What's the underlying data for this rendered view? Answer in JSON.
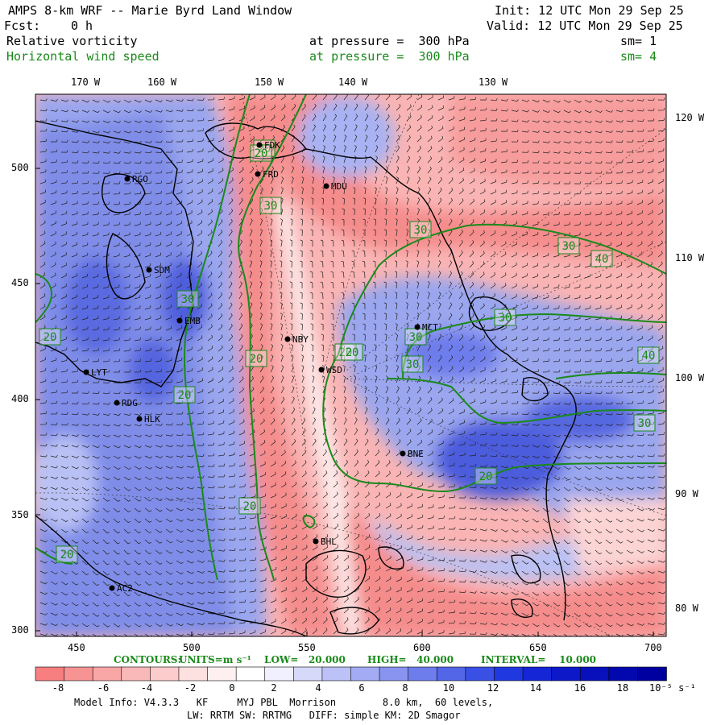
{
  "header": {
    "title": "AMPS 8-km WRF -- Marie Byrd Land Window",
    "init": "Init: 12 UTC Mon 29 Sep 25",
    "fcst_label": "Fcst:",
    "fcst_value": "0 h",
    "valid": "Valid: 12 UTC Mon 29 Sep 25"
  },
  "fields": [
    {
      "name": "Relative vorticity",
      "level": "at pressure =  300 hPa",
      "sm": "sm= 1",
      "color": "#000000"
    },
    {
      "name": "Horizontal wind speed",
      "level": "at pressure =  300 hPa",
      "sm": "sm= 4",
      "color": "#1a8a1a"
    }
  ],
  "axes": {
    "top_lon": [
      "170 W",
      "160 W",
      "150 W",
      "140 W",
      "130 W"
    ],
    "right_lon": [
      "120 W",
      "110 W",
      "100 W",
      "90 W",
      "80 W"
    ],
    "left_y": [
      "500",
      "450",
      "400",
      "350",
      "300"
    ],
    "bottom_x": [
      "450",
      "500",
      "550",
      "600",
      "650",
      "700"
    ]
  },
  "stations": [
    {
      "id": "FDK"
    },
    {
      "id": "FRD"
    },
    {
      "id": "MDU"
    },
    {
      "id": "RGO"
    },
    {
      "id": "SDM"
    },
    {
      "id": "EMB"
    },
    {
      "id": "NBY"
    },
    {
      "id": "WSD"
    },
    {
      "id": "MCT"
    },
    {
      "id": "LYT"
    },
    {
      "id": "RDG"
    },
    {
      "id": "HLK"
    },
    {
      "id": "BNE"
    },
    {
      "id": "BHL"
    },
    {
      "id": "AC2"
    }
  ],
  "contour_labels": [
    "20",
    "20",
    "30",
    "30",
    "30",
    "20",
    "20",
    "30",
    "20",
    "20",
    "30",
    "30",
    "40",
    "30",
    "40",
    "30",
    "20",
    "20",
    "20",
    "20"
  ],
  "contours_info": {
    "label": "CONTOURS:",
    "units": "UNITS=m s⁻¹",
    "low": "LOW=   20.000",
    "high": "HIGH=   40.000",
    "interval": "INTERVAL=    10.000"
  },
  "colorbar": {
    "ticks": [
      "-8",
      "-6",
      "-4",
      "-2",
      "0",
      "2",
      "4",
      "6",
      "8",
      "10",
      "12",
      "14",
      "16",
      "18",
      "10⁻⁵ s⁻¹"
    ],
    "colors": [
      "#f77f7f",
      "#f89393",
      "#f9a6a6",
      "#fab9b9",
      "#fccccc",
      "#fde0e0",
      "#fef0f0",
      "#ffffff",
      "#f0f0fe",
      "#d6d9fa",
      "#bcc2f7",
      "#a2abf3",
      "#8894ef",
      "#6e7dec",
      "#5466e8",
      "#3a4fe4",
      "#2038e0",
      "#1526d6",
      "#0d18c8",
      "#0710bb",
      "#0208ad",
      "#0000a0"
    ]
  },
  "footer": {
    "line1": "Model Info: V4.3.3   KF     MYJ PBL  Morrison        8.0 km,  60 levels,",
    "line2": "LW: RRTM SW: RRTMG   DIFF: simple KM: 2D Smagor"
  }
}
